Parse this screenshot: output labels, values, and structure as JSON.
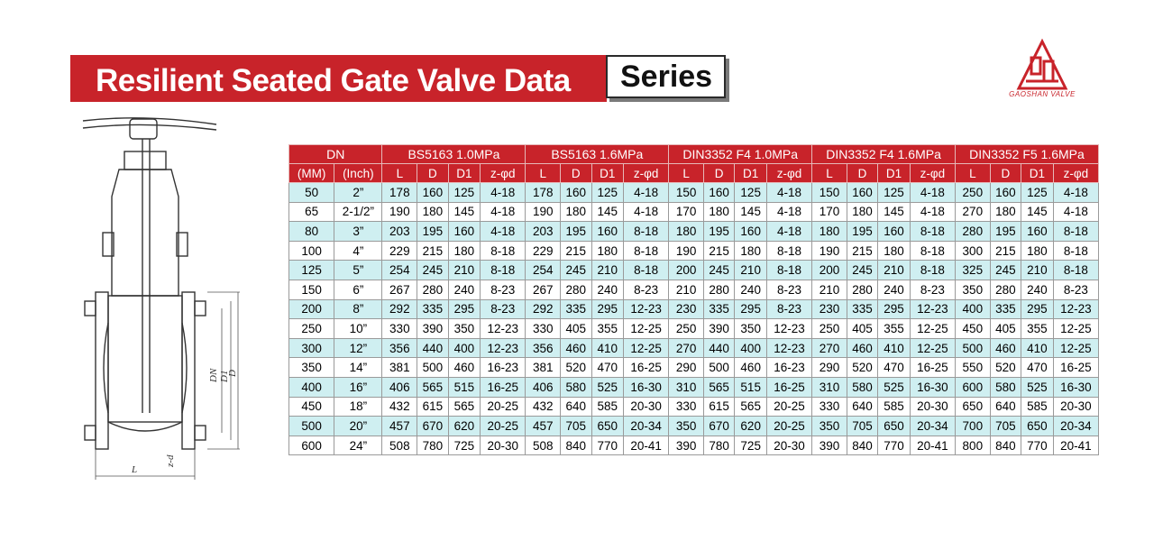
{
  "header": {
    "title": "Resilient Seated Gate Valve Data",
    "series_label": "Series"
  },
  "logo": {
    "text": "GAOSHAN VALVE",
    "icon": "gaoshan-logo"
  },
  "drawing": {
    "icon": "gate-valve-cross-section",
    "dim_labels": [
      "DN",
      "D1",
      "D",
      "L",
      "z-d"
    ]
  },
  "colors": {
    "accent": "#c8232a",
    "row_tint": "#cfeff1"
  },
  "table": {
    "dn_header": "DN",
    "unit_mm": "(MM)",
    "unit_inch": "(Inch)",
    "groups": [
      "BS5163 1.0MPa",
      "BS5163 1.6MPa",
      "DIN3352 F4 1.0MPa",
      "DIN3352 F4 1.6MPa",
      "DIN3352 F5 1.6MPa"
    ],
    "subcols": [
      "L",
      "D",
      "D1",
      "z-φd"
    ],
    "rows": [
      [
        "50",
        "2”",
        "178",
        "160",
        "125",
        "4-18",
        "178",
        "160",
        "125",
        "4-18",
        "150",
        "160",
        "125",
        "4-18",
        "150",
        "160",
        "125",
        "4-18",
        "250",
        "160",
        "125",
        "4-18"
      ],
      [
        "65",
        "2-1/2”",
        "190",
        "180",
        "145",
        "4-18",
        "190",
        "180",
        "145",
        "4-18",
        "170",
        "180",
        "145",
        "4-18",
        "170",
        "180",
        "145",
        "4-18",
        "270",
        "180",
        "145",
        "4-18"
      ],
      [
        "80",
        "3”",
        "203",
        "195",
        "160",
        "4-18",
        "203",
        "195",
        "160",
        "8-18",
        "180",
        "195",
        "160",
        "4-18",
        "180",
        "195",
        "160",
        "8-18",
        "280",
        "195",
        "160",
        "8-18"
      ],
      [
        "100",
        "4”",
        "229",
        "215",
        "180",
        "8-18",
        "229",
        "215",
        "180",
        "8-18",
        "190",
        "215",
        "180",
        "8-18",
        "190",
        "215",
        "180",
        "8-18",
        "300",
        "215",
        "180",
        "8-18"
      ],
      [
        "125",
        "5”",
        "254",
        "245",
        "210",
        "8-18",
        "254",
        "245",
        "210",
        "8-18",
        "200",
        "245",
        "210",
        "8-18",
        "200",
        "245",
        "210",
        "8-18",
        "325",
        "245",
        "210",
        "8-18"
      ],
      [
        "150",
        "6”",
        "267",
        "280",
        "240",
        "8-23",
        "267",
        "280",
        "240",
        "8-23",
        "210",
        "280",
        "240",
        "8-23",
        "210",
        "280",
        "240",
        "8-23",
        "350",
        "280",
        "240",
        "8-23"
      ],
      [
        "200",
        "8”",
        "292",
        "335",
        "295",
        "8-23",
        "292",
        "335",
        "295",
        "12-23",
        "230",
        "335",
        "295",
        "8-23",
        "230",
        "335",
        "295",
        "12-23",
        "400",
        "335",
        "295",
        "12-23"
      ],
      [
        "250",
        "10”",
        "330",
        "390",
        "350",
        "12-23",
        "330",
        "405",
        "355",
        "12-25",
        "250",
        "390",
        "350",
        "12-23",
        "250",
        "405",
        "355",
        "12-25",
        "450",
        "405",
        "355",
        "12-25"
      ],
      [
        "300",
        "12”",
        "356",
        "440",
        "400",
        "12-23",
        "356",
        "460",
        "410",
        "12-25",
        "270",
        "440",
        "400",
        "12-23",
        "270",
        "460",
        "410",
        "12-25",
        "500",
        "460",
        "410",
        "12-25"
      ],
      [
        "350",
        "14”",
        "381",
        "500",
        "460",
        "16-23",
        "381",
        "520",
        "470",
        "16-25",
        "290",
        "500",
        "460",
        "16-23",
        "290",
        "520",
        "470",
        "16-25",
        "550",
        "520",
        "470",
        "16-25"
      ],
      [
        "400",
        "16”",
        "406",
        "565",
        "515",
        "16-25",
        "406",
        "580",
        "525",
        "16-30",
        "310",
        "565",
        "515",
        "16-25",
        "310",
        "580",
        "525",
        "16-30",
        "600",
        "580",
        "525",
        "16-30"
      ],
      [
        "450",
        "18”",
        "432",
        "615",
        "565",
        "20-25",
        "432",
        "640",
        "585",
        "20-30",
        "330",
        "615",
        "565",
        "20-25",
        "330",
        "640",
        "585",
        "20-30",
        "650",
        "640",
        "585",
        "20-30"
      ],
      [
        "500",
        "20”",
        "457",
        "670",
        "620",
        "20-25",
        "457",
        "705",
        "650",
        "20-34",
        "350",
        "670",
        "620",
        "20-25",
        "350",
        "705",
        "650",
        "20-34",
        "700",
        "705",
        "650",
        "20-34"
      ],
      [
        "600",
        "24”",
        "508",
        "780",
        "725",
        "20-30",
        "508",
        "840",
        "770",
        "20-41",
        "390",
        "780",
        "725",
        "20-30",
        "390",
        "840",
        "770",
        "20-41",
        "800",
        "840",
        "770",
        "20-41"
      ]
    ]
  }
}
